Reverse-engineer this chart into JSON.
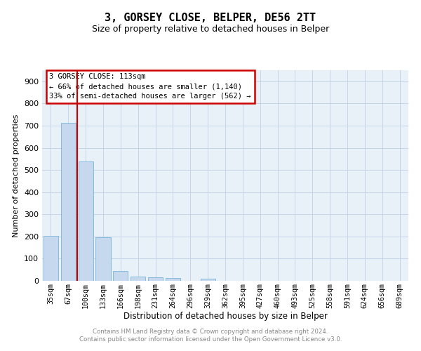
{
  "title": "3, GORSEY CLOSE, BELPER, DE56 2TT",
  "subtitle": "Size of property relative to detached houses in Belper",
  "xlabel": "Distribution of detached houses by size in Belper",
  "ylabel": "Number of detached properties",
  "categories": [
    "35sqm",
    "67sqm",
    "100sqm",
    "133sqm",
    "166sqm",
    "198sqm",
    "231sqm",
    "264sqm",
    "296sqm",
    "329sqm",
    "362sqm",
    "395sqm",
    "427sqm",
    "460sqm",
    "493sqm",
    "525sqm",
    "558sqm",
    "591sqm",
    "624sqm",
    "656sqm",
    "689sqm"
  ],
  "values": [
    203,
    713,
    537,
    196,
    44,
    20,
    15,
    13,
    0,
    10,
    0,
    0,
    0,
    0,
    0,
    0,
    0,
    0,
    0,
    0,
    0
  ],
  "bar_color": "#c5d8ed",
  "bar_edge_color": "#7ab4d8",
  "grid_color": "#c8d4e8",
  "background_color": "#e8f0f8",
  "red_line_x": 1.5,
  "annotation_text": "3 GORSEY CLOSE: 113sqm\n← 66% of detached houses are smaller (1,140)\n33% of semi-detached houses are larger (562) →",
  "annotation_box_color": "#ffffff",
  "annotation_box_edge": "#cc0000",
  "footer": "Contains HM Land Registry data © Crown copyright and database right 2024.\nContains public sector information licensed under the Open Government Licence v3.0.",
  "ylim": [
    0,
    950
  ],
  "yticks": [
    0,
    100,
    200,
    300,
    400,
    500,
    600,
    700,
    800,
    900
  ],
  "title_fontsize": 11,
  "subtitle_fontsize": 9,
  "ylabel_fontsize": 8,
  "xlabel_fontsize": 8.5
}
